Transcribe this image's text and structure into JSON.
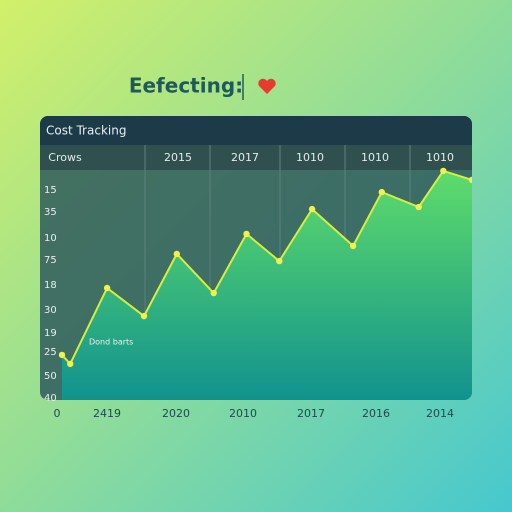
{
  "heading": "Eefecting:",
  "chart_data": {
    "type": "area",
    "title": "Cost Tracking",
    "header_labels": [
      "Crows",
      "2015",
      "2017",
      "1010",
      "1010",
      "1010"
    ],
    "ylabels": [
      "15",
      "35",
      "10",
      "75",
      "18",
      "30",
      "19",
      "25",
      "50",
      "40"
    ],
    "xlabels": [
      "0",
      "2419",
      "2020",
      "2010",
      "2017",
      "2016",
      "2014"
    ],
    "annotation": "Dond barts",
    "x": [
      0,
      2,
      11,
      20,
      28,
      37,
      45,
      53,
      61,
      71,
      78,
      87,
      93,
      100
    ],
    "values": [
      19.6,
      15.7,
      48.7,
      36.5,
      63.5,
      46.5,
      72.2,
      60.4,
      83,
      67,
      90.4,
      83.9,
      99.6,
      95.7
    ],
    "xlim": [
      0,
      100
    ],
    "ylim": [
      0,
      100
    ],
    "color": "#d6ee3c",
    "grid": true
  }
}
